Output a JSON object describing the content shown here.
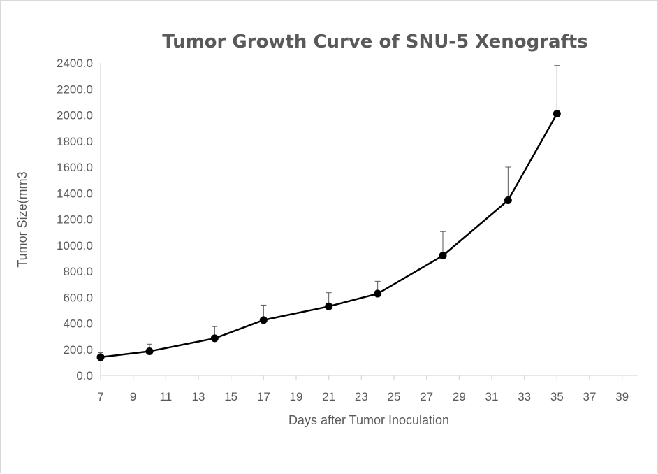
{
  "chart_data": {
    "type": "line",
    "title": "Tumor Growth Curve of SNU-5 Xenografts",
    "xlabel": "Days after Tumor Inoculation",
    "ylabel": "Tumor Size(mm3",
    "xlim": [
      7,
      40
    ],
    "ylim": [
      0,
      2400
    ],
    "x_ticks": [
      "7",
      "9",
      "11",
      "13",
      "15",
      "17",
      "19",
      "21",
      "23",
      "25",
      "27",
      "29",
      "31",
      "33",
      "35",
      "37",
      "39"
    ],
    "y_ticks": [
      "0.0",
      "200.0",
      "400.0",
      "600.0",
      "800.0",
      "1000.0",
      "1200.0",
      "1400.0",
      "1600.0",
      "1800.0",
      "2000.0",
      "2200.0",
      "2400.0"
    ],
    "grid": false,
    "legend": "none",
    "series_color": "#000000",
    "series": [
      {
        "x": [
          7,
          10,
          14,
          17,
          21,
          24,
          28,
          32,
          35
        ],
        "values": [
          140,
          185,
          285,
          425,
          530,
          628,
          920,
          1345,
          2010
        ],
        "error_upper": [
          35,
          55,
          90,
          115,
          105,
          95,
          185,
          255,
          370
        ]
      }
    ]
  }
}
